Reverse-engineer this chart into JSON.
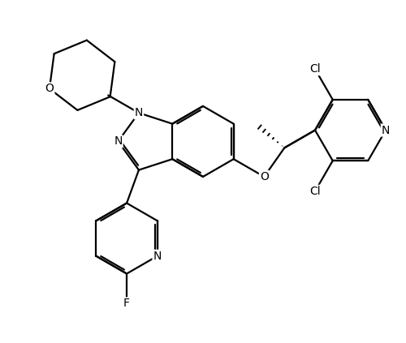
{
  "bg_color": "#ffffff",
  "line_color": "#000000",
  "line_width": 1.6,
  "font_size": 10,
  "figsize": [
    5.0,
    4.23
  ],
  "dpi": 100,
  "xlim": [
    0.0,
    10.0
  ],
  "ylim": [
    0.5,
    9.0
  ]
}
